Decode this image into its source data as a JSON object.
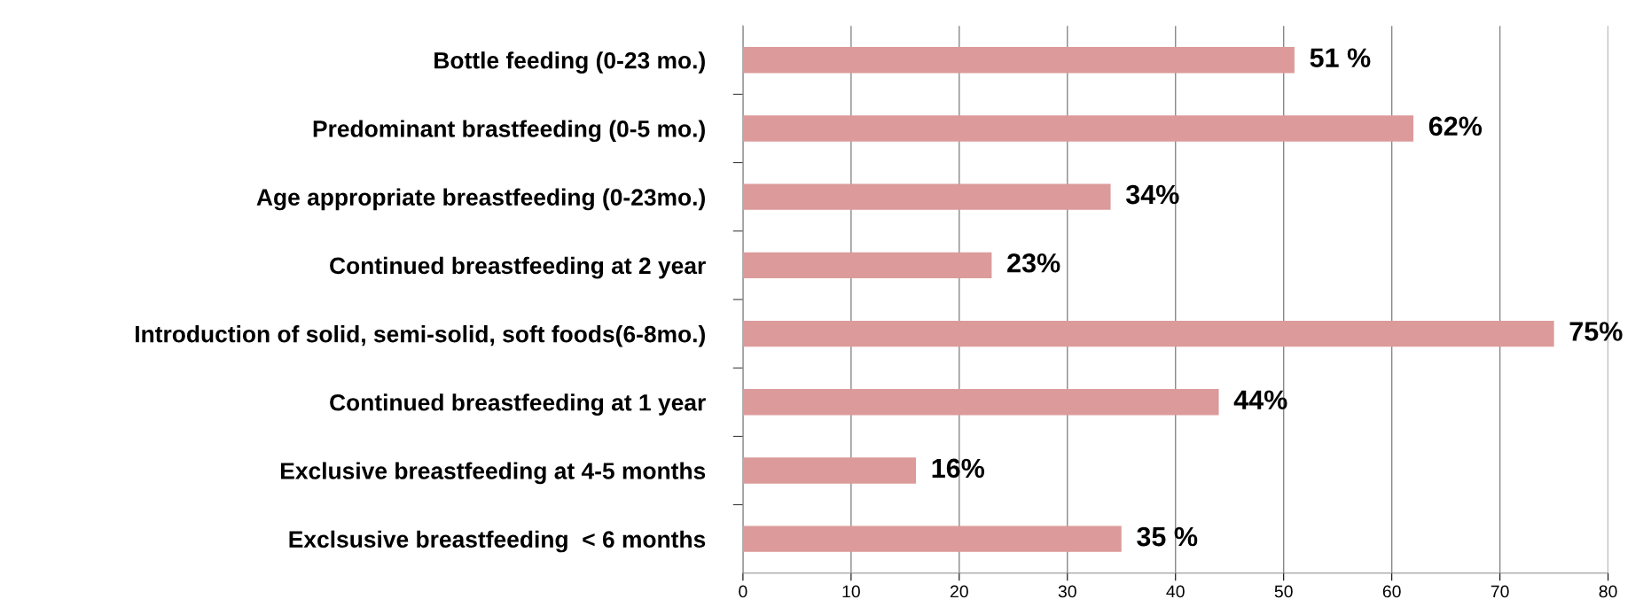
{
  "chart_data": {
    "type": "bar",
    "orientation": "horizontal",
    "categories": [
      "Bottle feeding (0-23 mo.)",
      "Predominant brastfeeding (0-5 mo.)",
      "Age appropriate breastfeeding (0-23mo.)",
      "Continued breastfeeding at 2 year",
      "Introduction of solid, semi-solid, soft foods(6-8mo.)",
      "Continued breastfeeding at 1 year",
      "Exclusive breastfeeding at 4-5 months",
      "Exclsusive breastfeeding  < 6 months"
    ],
    "values": [
      51,
      62,
      34,
      23,
      75,
      44,
      16,
      35
    ],
    "value_labels": [
      "51 %",
      "62%",
      "34%",
      "23%",
      "75%",
      "44%",
      "16%",
      "35 %"
    ],
    "color": "#dc9a9a",
    "xlim": [
      0,
      80
    ],
    "xticks": [
      0,
      10,
      20,
      30,
      40,
      50,
      60,
      70,
      80
    ],
    "grid": "x",
    "legend": false
  }
}
